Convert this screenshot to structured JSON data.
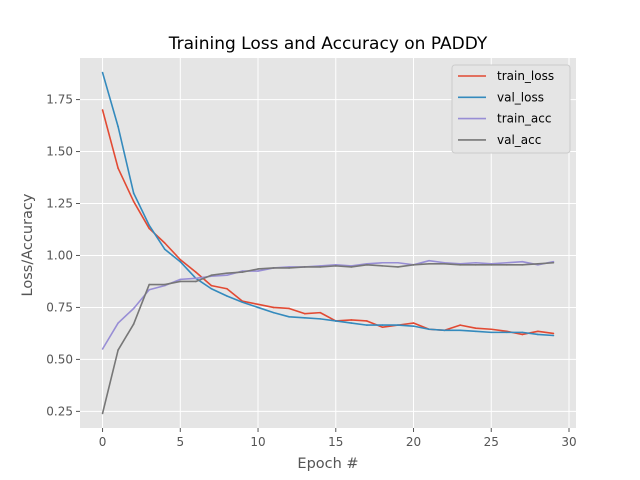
{
  "chart_data": {
    "type": "line",
    "title": "Training Loss and Accuracy on PADDY",
    "xlabel": "Epoch #",
    "ylabel": "Loss/Accuracy",
    "xlim": [
      -1.45,
      30.45
    ],
    "ylim": [
      0.17,
      1.95
    ],
    "xticks": [
      0,
      5,
      10,
      15,
      20,
      25,
      30
    ],
    "yticks": [
      0.25,
      0.5,
      0.75,
      1.0,
      1.25,
      1.5,
      1.75
    ],
    "ytick_labels": [
      "0.25",
      "0.50",
      "0.75",
      "1.00",
      "1.25",
      "1.50",
      "1.75"
    ],
    "grid": true,
    "legend_position": "top-right",
    "x": [
      0,
      1,
      2,
      3,
      4,
      5,
      6,
      7,
      8,
      9,
      10,
      11,
      12,
      13,
      14,
      15,
      16,
      17,
      18,
      19,
      20,
      21,
      22,
      23,
      24,
      25,
      26,
      27,
      28,
      29
    ],
    "series": [
      {
        "name": "train_loss",
        "color": "#e24a33",
        "values": [
          1.7,
          1.42,
          1.26,
          1.13,
          1.06,
          0.98,
          0.92,
          0.855,
          0.84,
          0.78,
          0.765,
          0.75,
          0.745,
          0.72,
          0.725,
          0.685,
          0.69,
          0.685,
          0.655,
          0.665,
          0.675,
          0.645,
          0.64,
          0.665,
          0.65,
          0.645,
          0.635,
          0.62,
          0.635,
          0.625
        ]
      },
      {
        "name": "val_loss",
        "color": "#348abd",
        "values": [
          1.88,
          1.62,
          1.3,
          1.145,
          1.03,
          0.97,
          0.89,
          0.84,
          0.805,
          0.775,
          0.75,
          0.725,
          0.705,
          0.7,
          0.695,
          0.685,
          0.675,
          0.665,
          0.665,
          0.665,
          0.66,
          0.645,
          0.64,
          0.64,
          0.635,
          0.63,
          0.63,
          0.63,
          0.62,
          0.615
        ]
      },
      {
        "name": "train_acc",
        "color": "#988ed5",
        "values": [
          0.55,
          0.675,
          0.745,
          0.835,
          0.855,
          0.885,
          0.89,
          0.9,
          0.905,
          0.925,
          0.925,
          0.94,
          0.945,
          0.945,
          0.95,
          0.955,
          0.95,
          0.96,
          0.965,
          0.965,
          0.955,
          0.975,
          0.965,
          0.96,
          0.965,
          0.96,
          0.965,
          0.97,
          0.955,
          0.97
        ]
      },
      {
        "name": "val_acc",
        "color": "#777777",
        "values": [
          0.24,
          0.545,
          0.67,
          0.86,
          0.86,
          0.875,
          0.875,
          0.905,
          0.915,
          0.92,
          0.935,
          0.94,
          0.94,
          0.945,
          0.945,
          0.95,
          0.945,
          0.955,
          0.95,
          0.945,
          0.955,
          0.96,
          0.96,
          0.955,
          0.955,
          0.955,
          0.955,
          0.955,
          0.96,
          0.965
        ]
      }
    ]
  }
}
